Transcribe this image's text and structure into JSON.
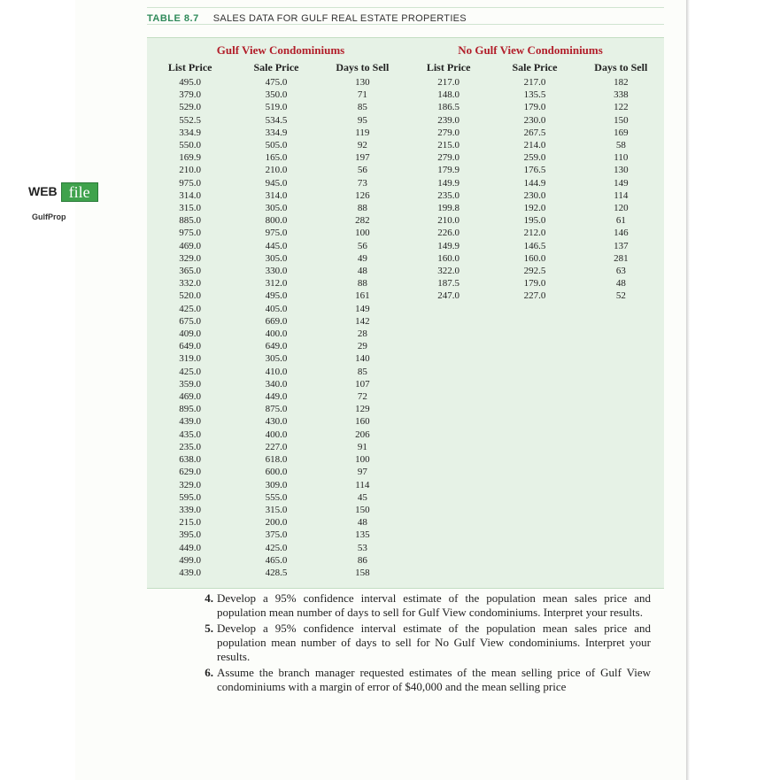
{
  "table": {
    "tag": "TABLE 8.7",
    "caption": "SALES DATA FOR GULF REAL ESTATE PROPERTIES",
    "groups": {
      "left": "Gulf View Condominiums",
      "right": "No Gulf View Condominiums"
    },
    "columns": [
      "List Price",
      "Sale Price",
      "Days to Sell",
      "List Price",
      "Sale Price",
      "Days to Sell"
    ],
    "gulf_view_rows": [
      [
        "495.0",
        "475.0",
        "130"
      ],
      [
        "379.0",
        "350.0",
        "71"
      ],
      [
        "529.0",
        "519.0",
        "85"
      ],
      [
        "552.5",
        "534.5",
        "95"
      ],
      [
        "334.9",
        "334.9",
        "119"
      ],
      [
        "550.0",
        "505.0",
        "92"
      ],
      [
        "169.9",
        "165.0",
        "197"
      ],
      [
        "210.0",
        "210.0",
        "56"
      ],
      [
        "975.0",
        "945.0",
        "73"
      ],
      [
        "314.0",
        "314.0",
        "126"
      ],
      [
        "315.0",
        "305.0",
        "88"
      ],
      [
        "885.0",
        "800.0",
        "282"
      ],
      [
        "975.0",
        "975.0",
        "100"
      ],
      [
        "469.0",
        "445.0",
        "56"
      ],
      [
        "329.0",
        "305.0",
        "49"
      ],
      [
        "365.0",
        "330.0",
        "48"
      ],
      [
        "332.0",
        "312.0",
        "88"
      ],
      [
        "520.0",
        "495.0",
        "161"
      ],
      [
        "425.0",
        "405.0",
        "149"
      ],
      [
        "675.0",
        "669.0",
        "142"
      ],
      [
        "409.0",
        "400.0",
        "28"
      ],
      [
        "649.0",
        "649.0",
        "29"
      ],
      [
        "319.0",
        "305.0",
        "140"
      ],
      [
        "425.0",
        "410.0",
        "85"
      ],
      [
        "359.0",
        "340.0",
        "107"
      ],
      [
        "469.0",
        "449.0",
        "72"
      ],
      [
        "895.0",
        "875.0",
        "129"
      ],
      [
        "439.0",
        "430.0",
        "160"
      ],
      [
        "435.0",
        "400.0",
        "206"
      ],
      [
        "235.0",
        "227.0",
        "91"
      ],
      [
        "638.0",
        "618.0",
        "100"
      ],
      [
        "629.0",
        "600.0",
        "97"
      ],
      [
        "329.0",
        "309.0",
        "114"
      ],
      [
        "595.0",
        "555.0",
        "45"
      ],
      [
        "339.0",
        "315.0",
        "150"
      ],
      [
        "215.0",
        "200.0",
        "48"
      ],
      [
        "395.0",
        "375.0",
        "135"
      ],
      [
        "449.0",
        "425.0",
        "53"
      ],
      [
        "499.0",
        "465.0",
        "86"
      ],
      [
        "439.0",
        "428.5",
        "158"
      ]
    ],
    "no_gulf_view_rows": [
      [
        "217.0",
        "217.0",
        "182"
      ],
      [
        "148.0",
        "135.5",
        "338"
      ],
      [
        "186.5",
        "179.0",
        "122"
      ],
      [
        "239.0",
        "230.0",
        "150"
      ],
      [
        "279.0",
        "267.5",
        "169"
      ],
      [
        "215.0",
        "214.0",
        "58"
      ],
      [
        "279.0",
        "259.0",
        "110"
      ],
      [
        "179.9",
        "176.5",
        "130"
      ],
      [
        "149.9",
        "144.9",
        "149"
      ],
      [
        "235.0",
        "230.0",
        "114"
      ],
      [
        "199.8",
        "192.0",
        "120"
      ],
      [
        "210.0",
        "195.0",
        "61"
      ],
      [
        "226.0",
        "212.0",
        "146"
      ],
      [
        "149.9",
        "146.5",
        "137"
      ],
      [
        "160.0",
        "160.0",
        "281"
      ],
      [
        "322.0",
        "292.5",
        "63"
      ],
      [
        "187.5",
        "179.0",
        "48"
      ],
      [
        "247.0",
        "227.0",
        "52"
      ]
    ]
  },
  "webfile": {
    "web": "WEB",
    "file": "file",
    "name": "GulfProp"
  },
  "questions": [
    {
      "num": "4.",
      "text": "Develop a 95% confidence interval estimate of the population mean sales price and population mean number of days to sell for Gulf View condominiums. Interpret your results."
    },
    {
      "num": "5.",
      "text": "Develop a 95% confidence interval estimate of the population mean sales price and population mean number of days to sell for No Gulf View condominiums. Interpret your results."
    },
    {
      "num": "6.",
      "text": "Assume the branch manager requested estimates of the mean selling price of Gulf View condominiums with a margin of error of $40,000 and the mean selling price"
    }
  ]
}
